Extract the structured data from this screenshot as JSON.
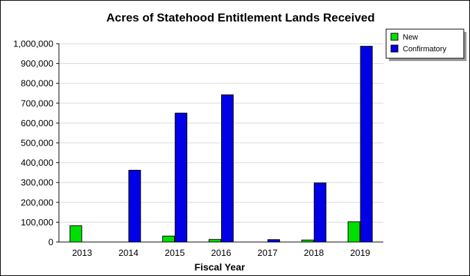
{
  "chart_data": {
    "type": "bar",
    "title": "Acres of Statehood Entitlement Lands Received",
    "xlabel": "Fiscal Year",
    "ylabel": "",
    "categories": [
      "2013",
      "2014",
      "2015",
      "2016",
      "2017",
      "2018",
      "2019"
    ],
    "series": [
      {
        "name": "New",
        "color": "#00e000",
        "values": [
          82000,
          0,
          30000,
          13000,
          0,
          10000,
          102000
        ]
      },
      {
        "name": "Confirmatory",
        "color": "#0000e6",
        "values": [
          0,
          362000,
          650000,
          742000,
          12000,
          298000,
          987000
        ]
      }
    ],
    "ylim": [
      0,
      1000000
    ],
    "yticks": [
      0,
      100000,
      200000,
      300000,
      400000,
      500000,
      600000,
      700000,
      800000,
      900000,
      1000000
    ],
    "ytick_labels": [
      "0",
      "100,000",
      "200,000",
      "300,000",
      "400,000",
      "500,000",
      "600,000",
      "700,000",
      "800,000",
      "900,000",
      "1,000,000"
    ],
    "grid": true,
    "legend_position": "top-right"
  }
}
